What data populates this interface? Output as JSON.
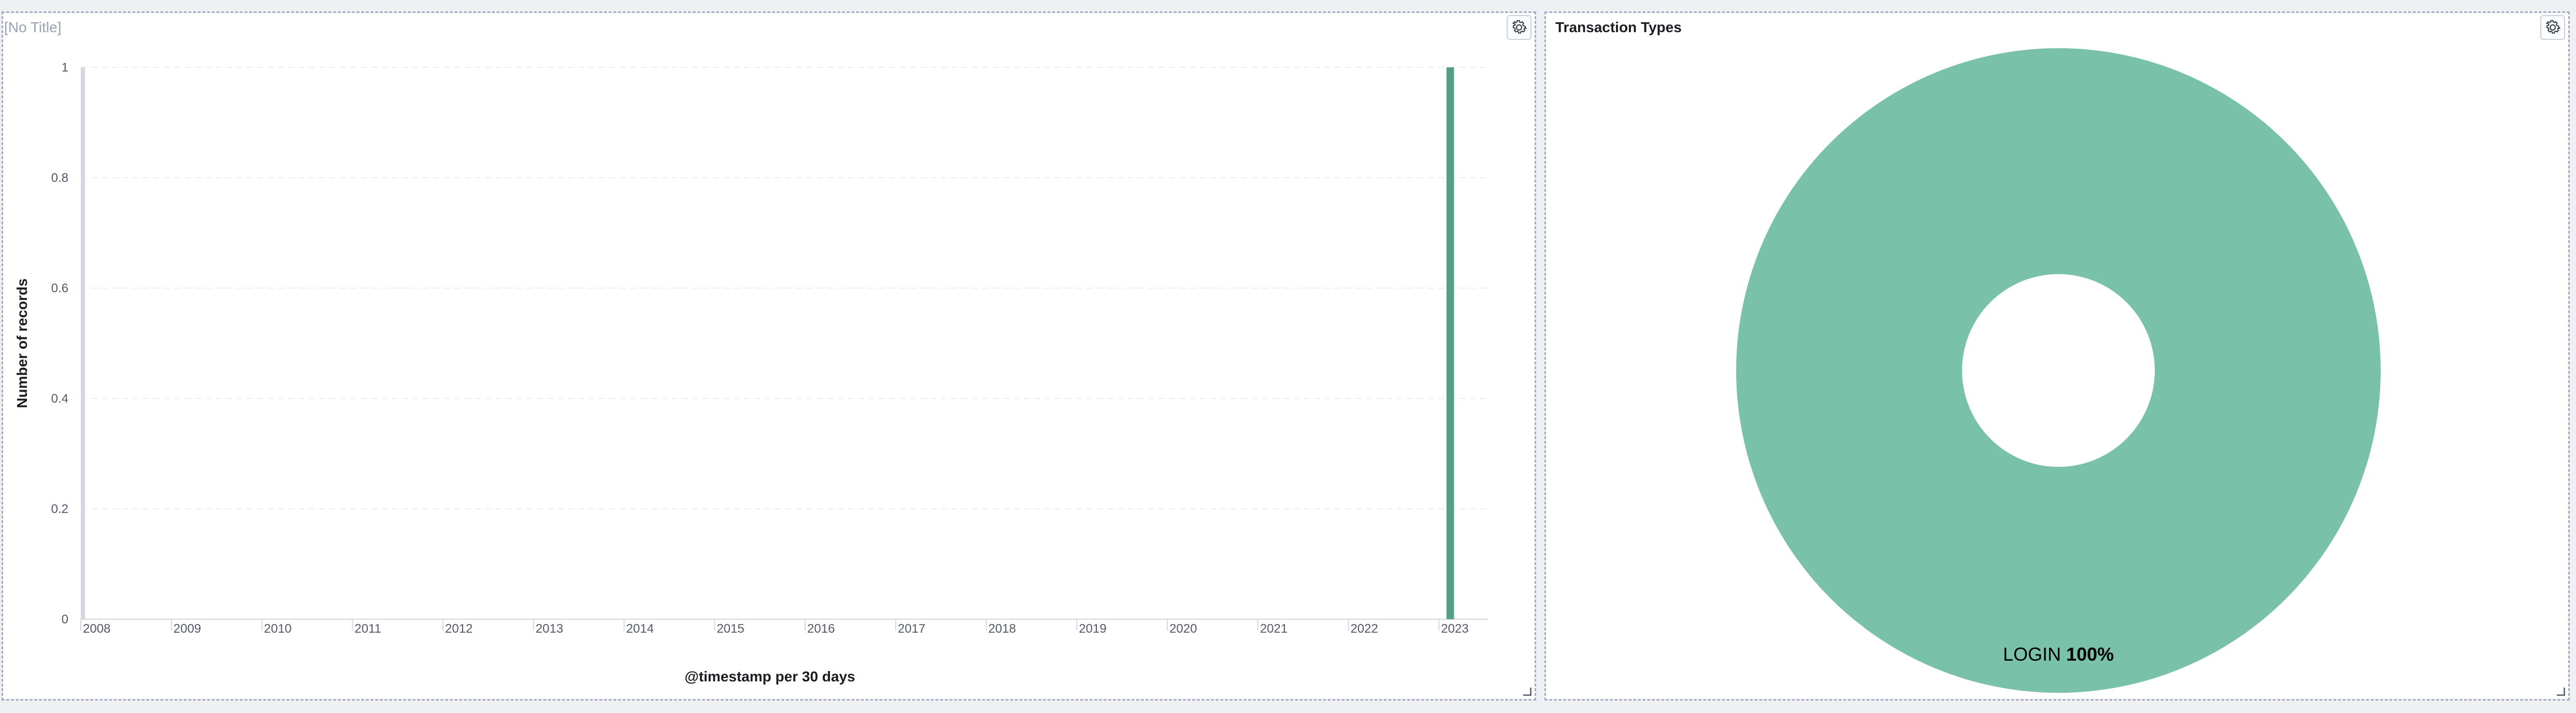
{
  "panels": {
    "histogram": {
      "title": "[No Title]",
      "settings_icon": "gear-icon"
    },
    "donut": {
      "title": "Transaction Types",
      "settings_icon": "gear-icon"
    }
  },
  "colors": {
    "bar": "#54a084",
    "donut": "#7ac1aa",
    "grid": "#eceef2",
    "brush_edge": "#d3d7de"
  },
  "chart_data": [
    {
      "type": "bar",
      "title": "[No Title]",
      "xlabel": "@timestamp per 30 days",
      "ylabel": "Number of records",
      "ylim": [
        0,
        1
      ],
      "grid": true,
      "x_ticks": [
        "2008",
        "2009",
        "2010",
        "2011",
        "2012",
        "2013",
        "2014",
        "2015",
        "2016",
        "2017",
        "2018",
        "2019",
        "2020",
        "2021",
        "2022",
        "2023"
      ],
      "y_ticks": [
        "0",
        "0.2",
        "0.4",
        "0.6",
        "0.8",
        "1"
      ],
      "series": [
        {
          "values": [
            {
              "x": "2023-02",
              "y": 1
            }
          ]
        }
      ]
    },
    {
      "type": "pie",
      "title": "Transaction Types",
      "donut": true,
      "slices": [
        {
          "label": "LOGIN",
          "value": 100,
          "percent_label": "100%"
        }
      ]
    }
  ]
}
